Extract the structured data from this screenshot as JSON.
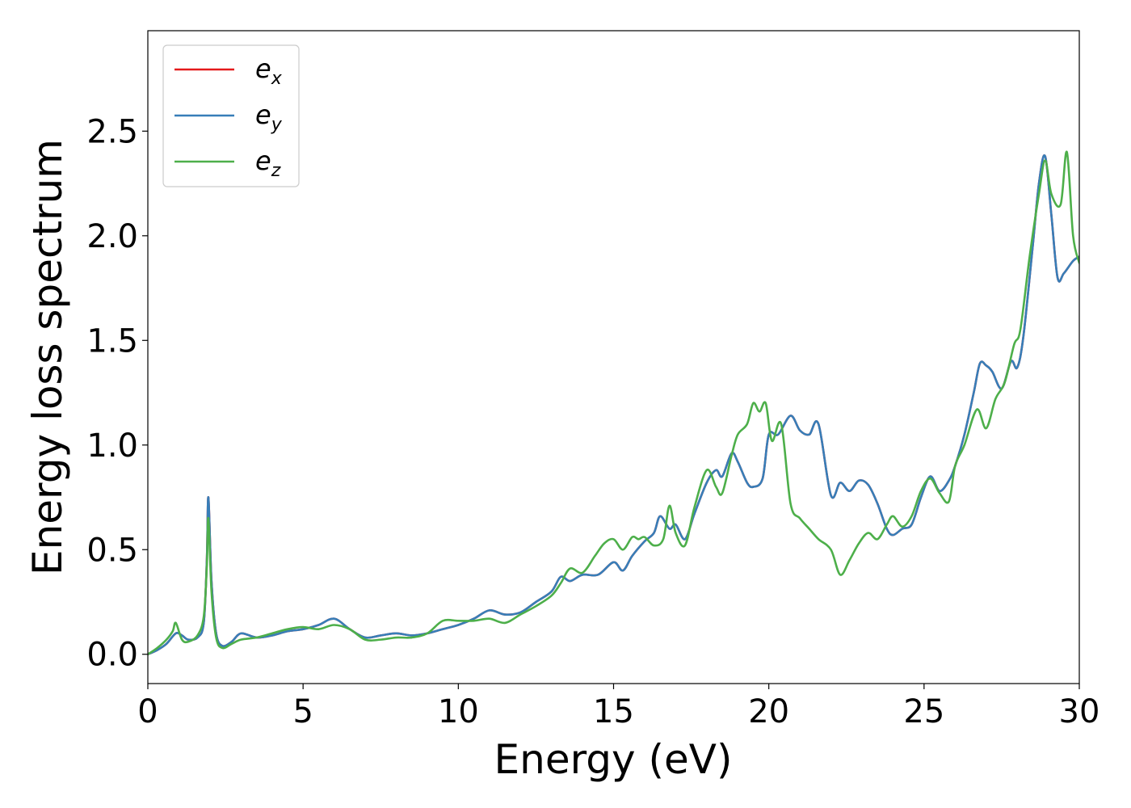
{
  "chart_data": {
    "type": "line",
    "title": "",
    "xlabel": "Energy (eV)",
    "ylabel": "Energy loss spectrum",
    "xlim": [
      0,
      30
    ],
    "ylim": [
      -0.14,
      2.98
    ],
    "xticks": [
      0,
      5,
      10,
      15,
      20,
      25,
      30
    ],
    "yticks": [
      0.0,
      0.5,
      1.0,
      1.5,
      2.0,
      2.5
    ],
    "xtick_labels": [
      "0",
      "5",
      "10",
      "15",
      "20",
      "25",
      "30"
    ],
    "ytick_labels": [
      "0.0",
      "0.5",
      "1.0",
      "1.5",
      "2.0",
      "2.5"
    ],
    "grid": false,
    "legend": {
      "placement": "top-left"
    },
    "series": [
      {
        "name": "e_x",
        "label_main": "e",
        "label_sub": "x",
        "color": "#e41a1c",
        "x": [
          0,
          0.3,
          0.6,
          0.9,
          1.1,
          1.3,
          1.6,
          1.8,
          1.9,
          1.95,
          2.05,
          2.2,
          2.4,
          2.7,
          3,
          3.5,
          4,
          4.5,
          5,
          5.5,
          6,
          6.5,
          7,
          7.5,
          8,
          8.5,
          9,
          9.5,
          10,
          10.5,
          11,
          11.5,
          12,
          12.5,
          13,
          13.3,
          13.6,
          14,
          14.5,
          15,
          15.3,
          15.6,
          16,
          16.3,
          16.5,
          16.8,
          17,
          17.3,
          17.6,
          18,
          18.3,
          18.5,
          18.8,
          19,
          19.3,
          19.5,
          19.8,
          20,
          20.3,
          20.7,
          21,
          21.3,
          21.6,
          22,
          22.3,
          22.6,
          22.9,
          23.2,
          23.5,
          23.8,
          24,
          24.3,
          24.6,
          24.9,
          25.2,
          25.5,
          25.8,
          26,
          26.3,
          26.6,
          26.8,
          27,
          27.2,
          27.5,
          27.8,
          28,
          28.2,
          28.5,
          28.7,
          28.9,
          29.1,
          29.3,
          29.5,
          29.8,
          30
        ],
        "y": [
          0,
          0.02,
          0.05,
          0.1,
          0.09,
          0.07,
          0.08,
          0.15,
          0.45,
          0.75,
          0.35,
          0.1,
          0.04,
          0.06,
          0.1,
          0.08,
          0.09,
          0.11,
          0.12,
          0.14,
          0.17,
          0.12,
          0.08,
          0.09,
          0.1,
          0.09,
          0.1,
          0.12,
          0.14,
          0.17,
          0.21,
          0.19,
          0.2,
          0.25,
          0.3,
          0.37,
          0.35,
          0.38,
          0.38,
          0.44,
          0.4,
          0.47,
          0.54,
          0.58,
          0.66,
          0.6,
          0.62,
          0.55,
          0.67,
          0.82,
          0.88,
          0.85,
          0.96,
          0.92,
          0.82,
          0.8,
          0.84,
          1.05,
          1.05,
          1.14,
          1.07,
          1.05,
          1.1,
          0.76,
          0.82,
          0.78,
          0.83,
          0.81,
          0.72,
          0.6,
          0.57,
          0.6,
          0.62,
          0.75,
          0.85,
          0.78,
          0.83,
          0.9,
          1.05,
          1.25,
          1.39,
          1.38,
          1.35,
          1.27,
          1.4,
          1.37,
          1.52,
          1.95,
          2.25,
          2.38,
          2.1,
          1.8,
          1.82,
          1.88,
          1.9
        ]
      },
      {
        "name": "e_y",
        "label_main": "e",
        "label_sub": "y",
        "color": "#377eb8",
        "x": [
          0,
          0.3,
          0.6,
          0.9,
          1.1,
          1.3,
          1.6,
          1.8,
          1.9,
          1.95,
          2.05,
          2.2,
          2.4,
          2.7,
          3,
          3.5,
          4,
          4.5,
          5,
          5.5,
          6,
          6.5,
          7,
          7.5,
          8,
          8.5,
          9,
          9.5,
          10,
          10.5,
          11,
          11.5,
          12,
          12.5,
          13,
          13.3,
          13.6,
          14,
          14.5,
          15,
          15.3,
          15.6,
          16,
          16.3,
          16.5,
          16.8,
          17,
          17.3,
          17.6,
          18,
          18.3,
          18.5,
          18.8,
          19,
          19.3,
          19.5,
          19.8,
          20,
          20.3,
          20.7,
          21,
          21.3,
          21.6,
          22,
          22.3,
          22.6,
          22.9,
          23.2,
          23.5,
          23.8,
          24,
          24.3,
          24.6,
          24.9,
          25.2,
          25.5,
          25.8,
          26,
          26.3,
          26.6,
          26.8,
          27,
          27.2,
          27.5,
          27.8,
          28,
          28.2,
          28.5,
          28.7,
          28.9,
          29.1,
          29.3,
          29.5,
          29.8,
          30
        ],
        "y": [
          0,
          0.02,
          0.05,
          0.1,
          0.09,
          0.07,
          0.08,
          0.15,
          0.45,
          0.75,
          0.35,
          0.1,
          0.04,
          0.06,
          0.1,
          0.08,
          0.09,
          0.11,
          0.12,
          0.14,
          0.17,
          0.12,
          0.08,
          0.09,
          0.1,
          0.09,
          0.1,
          0.12,
          0.14,
          0.17,
          0.21,
          0.19,
          0.2,
          0.25,
          0.3,
          0.37,
          0.35,
          0.38,
          0.38,
          0.44,
          0.4,
          0.47,
          0.54,
          0.58,
          0.66,
          0.6,
          0.62,
          0.55,
          0.67,
          0.82,
          0.88,
          0.85,
          0.96,
          0.92,
          0.82,
          0.8,
          0.84,
          1.05,
          1.05,
          1.14,
          1.07,
          1.05,
          1.1,
          0.76,
          0.82,
          0.78,
          0.83,
          0.81,
          0.72,
          0.6,
          0.57,
          0.6,
          0.62,
          0.75,
          0.85,
          0.78,
          0.83,
          0.9,
          1.05,
          1.25,
          1.39,
          1.38,
          1.35,
          1.27,
          1.4,
          1.37,
          1.52,
          1.95,
          2.25,
          2.38,
          2.1,
          1.8,
          1.82,
          1.88,
          1.9
        ]
      },
      {
        "name": "e_z",
        "label_main": "e",
        "label_sub": "z",
        "color": "#4daf4a",
        "x": [
          0,
          0.3,
          0.6,
          0.8,
          0.9,
          1.1,
          1.3,
          1.6,
          1.8,
          1.9,
          1.95,
          2.05,
          2.2,
          2.4,
          2.7,
          3,
          3.5,
          4,
          4.5,
          5,
          5.5,
          6,
          6.5,
          7,
          7.5,
          8,
          8.5,
          9,
          9.5,
          10,
          10.5,
          11,
          11.5,
          12,
          12.5,
          13,
          13.3,
          13.6,
          14,
          14.4,
          14.7,
          15,
          15.3,
          15.6,
          15.8,
          16,
          16.3,
          16.6,
          16.8,
          17,
          17.3,
          17.6,
          18,
          18.3,
          18.5,
          18.8,
          19,
          19.3,
          19.5,
          19.7,
          19.9,
          20.1,
          20.4,
          20.7,
          21,
          21.3,
          21.6,
          22,
          22.3,
          22.6,
          22.9,
          23.2,
          23.5,
          23.8,
          24,
          24.3,
          24.6,
          24.9,
          25.2,
          25.5,
          25.8,
          26,
          26.3,
          26.7,
          27,
          27.3,
          27.6,
          27.9,
          28.1,
          28.4,
          28.7,
          28.9,
          29.1,
          29.4,
          29.6,
          29.8,
          30
        ],
        "y": [
          0,
          0.03,
          0.07,
          0.11,
          0.15,
          0.07,
          0.06,
          0.09,
          0.18,
          0.42,
          0.65,
          0.3,
          0.08,
          0.03,
          0.05,
          0.07,
          0.08,
          0.1,
          0.12,
          0.13,
          0.12,
          0.14,
          0.12,
          0.07,
          0.07,
          0.08,
          0.08,
          0.1,
          0.16,
          0.16,
          0.16,
          0.17,
          0.15,
          0.19,
          0.23,
          0.28,
          0.34,
          0.41,
          0.39,
          0.47,
          0.53,
          0.55,
          0.5,
          0.56,
          0.55,
          0.56,
          0.52,
          0.55,
          0.71,
          0.58,
          0.52,
          0.7,
          0.88,
          0.8,
          0.77,
          0.95,
          1.05,
          1.1,
          1.2,
          1.16,
          1.2,
          1.02,
          1.1,
          0.72,
          0.65,
          0.6,
          0.55,
          0.5,
          0.38,
          0.45,
          0.53,
          0.58,
          0.55,
          0.62,
          0.66,
          0.61,
          0.66,
          0.78,
          0.84,
          0.77,
          0.73,
          0.9,
          1.0,
          1.17,
          1.08,
          1.22,
          1.3,
          1.48,
          1.55,
          1.9,
          2.2,
          2.36,
          2.2,
          2.15,
          2.4,
          2.0,
          1.87
        ]
      }
    ]
  }
}
